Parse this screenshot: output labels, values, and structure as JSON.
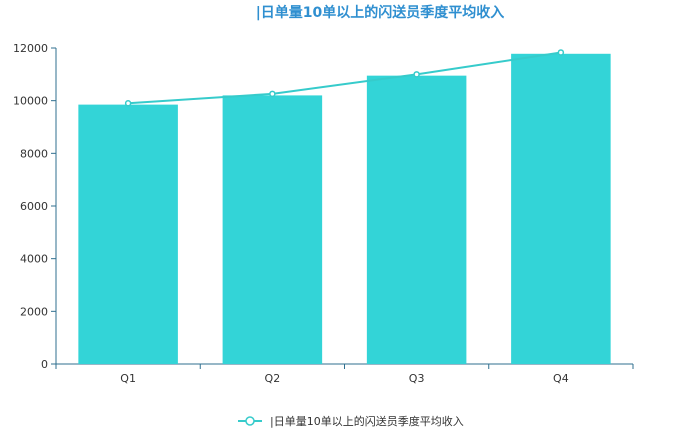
{
  "chart_data": {
    "type": "bar",
    "title": "|日单量10单以上的闪送员季度平均收入",
    "categories": [
      "Q1",
      "Q2",
      "Q3",
      "Q4"
    ],
    "series": [
      {
        "name": "|日单量10单以上的闪送员季度平均收入",
        "type": "bar",
        "values": [
          9850,
          10200,
          10950,
          11780
        ]
      },
      {
        "name": "|日单量10单以上的闪送员季度平均收入",
        "type": "line",
        "values": [
          9900,
          10260,
          11000,
          11830
        ]
      }
    ],
    "ylim": [
      0,
      12000
    ],
    "yticks": [
      0,
      2000,
      4000,
      6000,
      8000,
      10000,
      12000
    ],
    "xlabel": "",
    "ylabel": "",
    "grid": false,
    "legend": "bottom-center",
    "colors": {
      "bar": "#33d4d7",
      "line": "#36cbcb",
      "title": "#2f8fd0",
      "axis": "#2f6f8f"
    }
  }
}
